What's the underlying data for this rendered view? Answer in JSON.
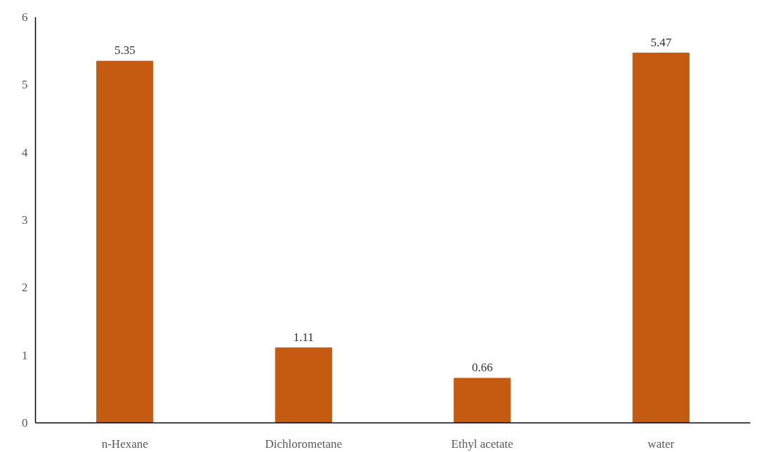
{
  "chart_data": {
    "type": "bar",
    "categories": [
      "n-Hexane",
      "Dichlorometane",
      "Ethyl acetate",
      "water"
    ],
    "values": [
      5.35,
      1.11,
      0.66,
      5.47
    ],
    "color": "#c55a11",
    "ylim": [
      0,
      6
    ],
    "yticks": [
      0,
      1,
      2,
      3,
      4,
      5,
      6
    ],
    "data_labels": true
  }
}
